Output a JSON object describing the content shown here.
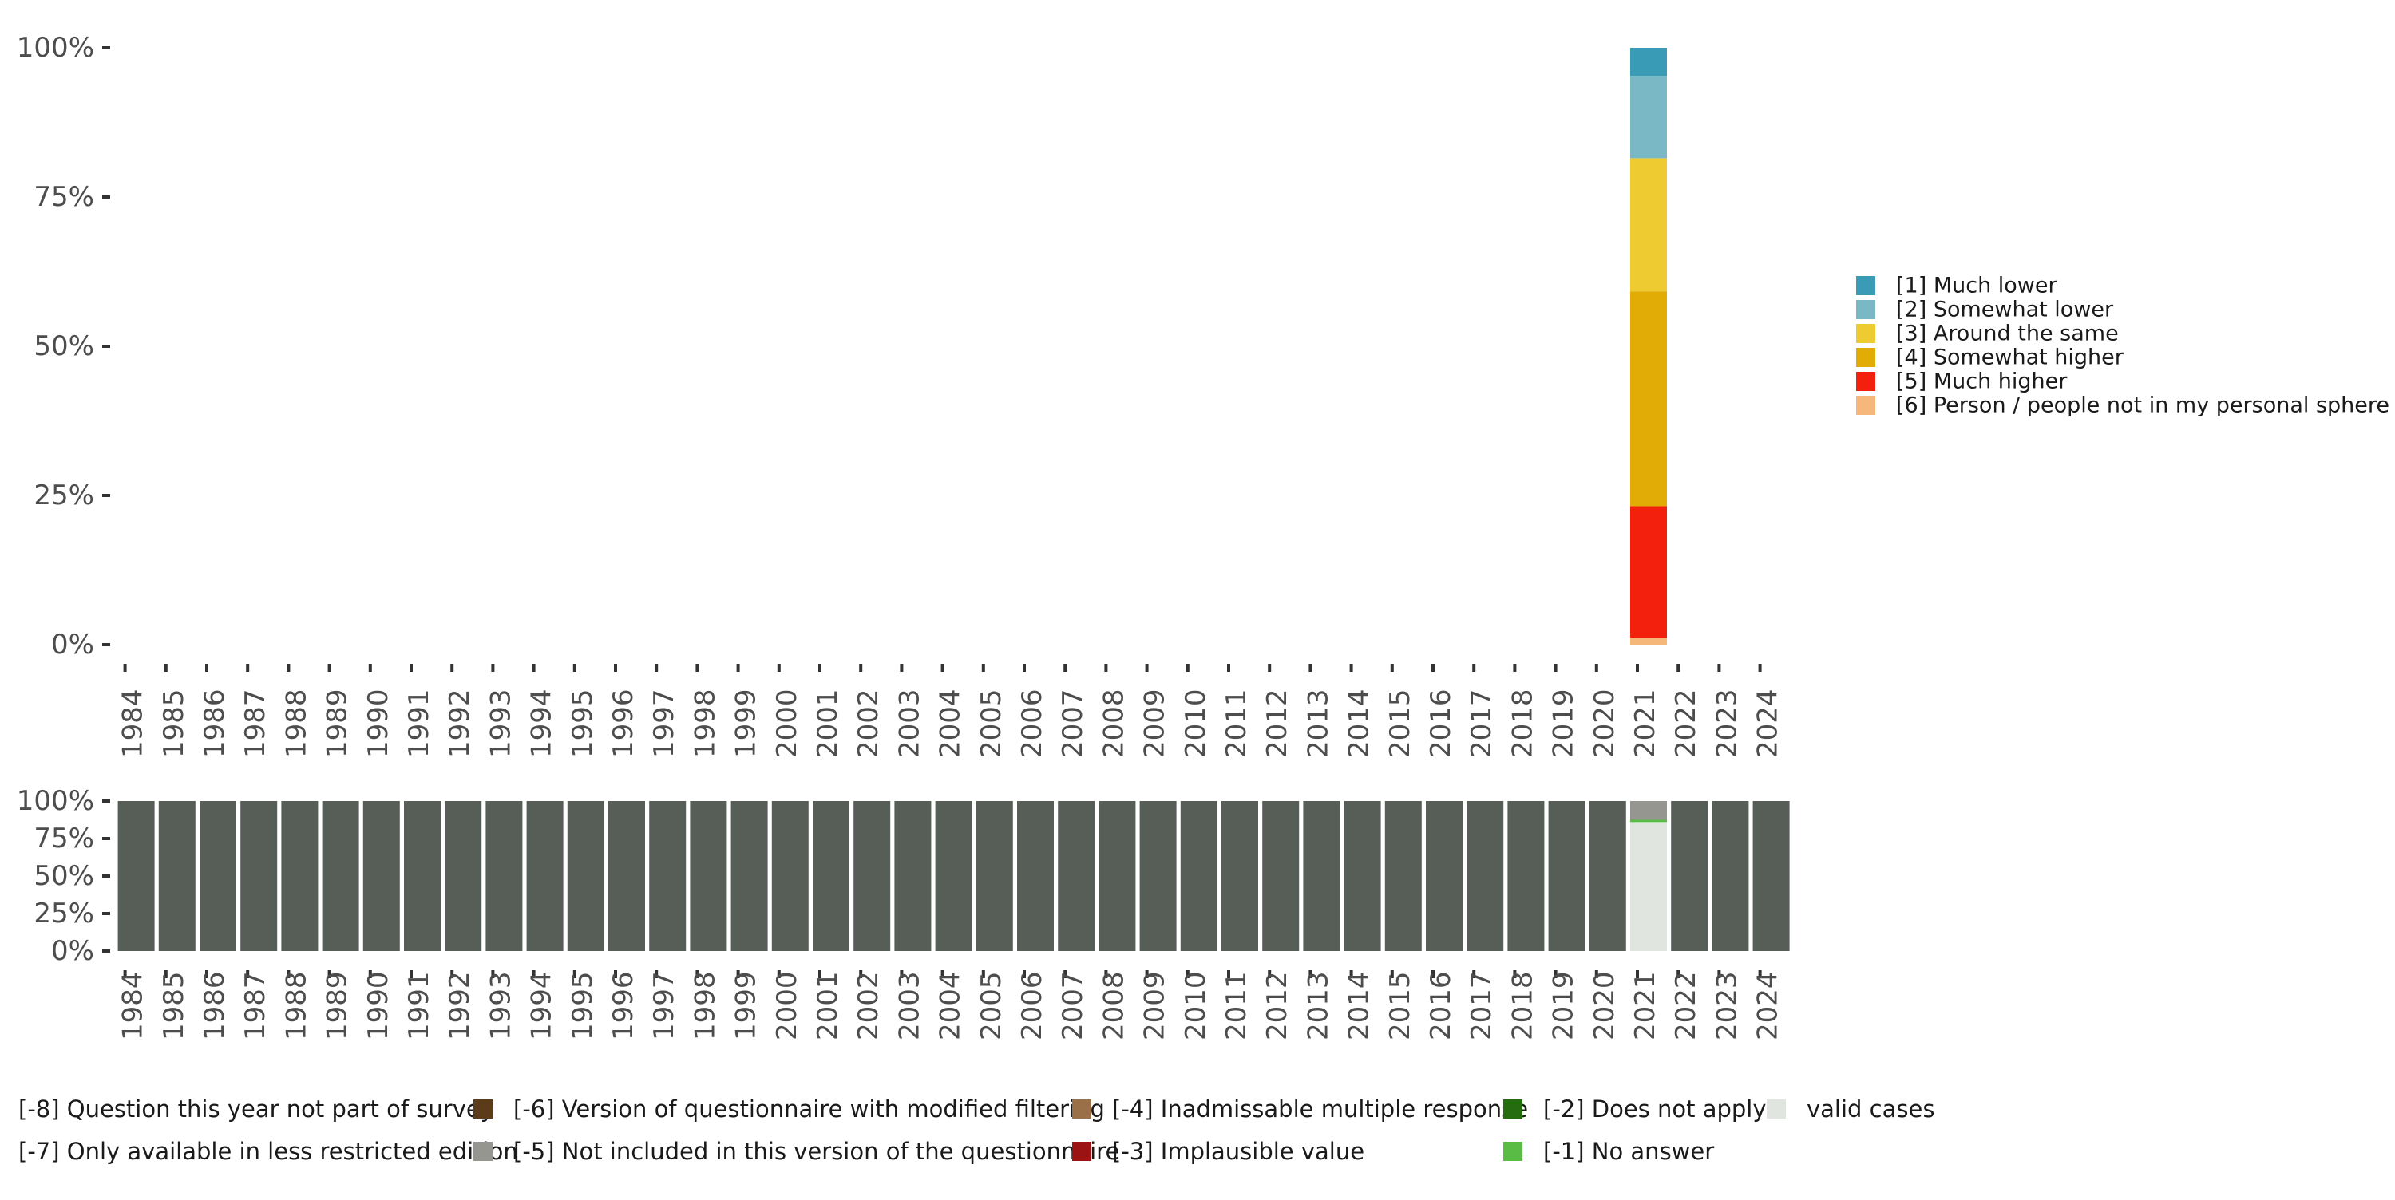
{
  "chart_data": [
    {
      "type": "bar",
      "stacked": true,
      "title": "",
      "xlabel": "",
      "ylabel": "",
      "ylim": [
        0,
        1
      ],
      "yticks": [
        "0%",
        "25%",
        "50%",
        "75%",
        "100%"
      ],
      "grid": false,
      "legend_position": "right",
      "categories": [
        "1984",
        "1985",
        "1986",
        "1987",
        "1988",
        "1989",
        "1990",
        "1991",
        "1992",
        "1993",
        "1994",
        "1995",
        "1996",
        "1997",
        "1998",
        "1999",
        "2000",
        "2001",
        "2002",
        "2003",
        "2004",
        "2005",
        "2006",
        "2007",
        "2008",
        "2009",
        "2010",
        "2011",
        "2012",
        "2013",
        "2014",
        "2015",
        "2016",
        "2017",
        "2018",
        "2019",
        "2020",
        "2021",
        "2022",
        "2023",
        "2024"
      ],
      "series": [
        {
          "name": "[6] Person / people not in my personal sphere",
          "color": "#f6b77b",
          "data": {
            "2021": 0.012
          }
        },
        {
          "name": "[5] Much higher",
          "color": "#f2200d",
          "data": {
            "2021": 0.22
          }
        },
        {
          "name": "[4] Somewhat higher",
          "color": "#e2ac06",
          "data": {
            "2021": 0.36
          }
        },
        {
          "name": "[3] Around the same",
          "color": "#eecb31",
          "data": {
            "2021": 0.223
          }
        },
        {
          "name": "[2] Somewhat lower",
          "color": "#7bb8c6",
          "data": {
            "2021": 0.138
          }
        },
        {
          "name": "[1] Much lower",
          "color": "#3a9bb6",
          "data": {
            "2021": 0.047
          }
        }
      ]
    },
    {
      "type": "bar",
      "stacked": true,
      "title": "",
      "xlabel": "",
      "ylabel": "",
      "ylim": [
        0,
        1
      ],
      "yticks": [
        "0%",
        "25%",
        "50%",
        "75%",
        "100%"
      ],
      "grid": false,
      "legend_position": "bottom",
      "categories": [
        "1984",
        "1985",
        "1986",
        "1987",
        "1988",
        "1989",
        "1990",
        "1991",
        "1992",
        "1993",
        "1994",
        "1995",
        "1996",
        "1997",
        "1998",
        "1999",
        "2000",
        "2001",
        "2002",
        "2003",
        "2004",
        "2005",
        "2006",
        "2007",
        "2008",
        "2009",
        "2010",
        "2011",
        "2012",
        "2013",
        "2014",
        "2015",
        "2016",
        "2017",
        "2018",
        "2019",
        "2020",
        "2021",
        "2022",
        "2023",
        "2024"
      ],
      "legend_order": [
        "[-8] Question this year not part of survey",
        "[-7] Only available in less restricted edition",
        "[-6] Version of questionnaire with modified filtering",
        "[-5] Not included in this version of the questionnaire",
        "[-4] Inadmissable multiple response",
        "[-3] Implausible value",
        "[-2] Does not apply",
        "[-1] No answer",
        "valid cases"
      ],
      "series": [
        {
          "name": "valid cases",
          "color": "#e1e5df",
          "data": {
            "2021": 0.86
          }
        },
        {
          "name": "[-1] No answer",
          "color": "#58bc45",
          "data": {
            "2021": 0.015
          }
        },
        {
          "name": "[-2] Does not apply",
          "color": "#256b10",
          "data": {}
        },
        {
          "name": "[-3] Implausible value",
          "color": "#9c1313",
          "data": {}
        },
        {
          "name": "[-4] Inadmissable multiple response",
          "color": "#9a7048",
          "data": {}
        },
        {
          "name": "[-5] Not included in this version of the questionnaire",
          "color": "#969690",
          "data": {
            "2021": 0.125
          }
        },
        {
          "name": "[-6] Version of questionnaire with modified filtering",
          "color": "#5c3b1a",
          "data": {}
        },
        {
          "name": "[-7] Only available in less restricted edition",
          "color": "#7a7a7a",
          "data": {}
        },
        {
          "name": "[-8] Question this year not part of survey",
          "color": "#575d57",
          "data": {
            "1984": 1,
            "1985": 1,
            "1986": 1,
            "1987": 1,
            "1988": 1,
            "1989": 1,
            "1990": 1,
            "1991": 1,
            "1992": 1,
            "1993": 1,
            "1994": 1,
            "1995": 1,
            "1996": 1,
            "1997": 1,
            "1998": 1,
            "1999": 1,
            "2000": 1,
            "2001": 1,
            "2002": 1,
            "2003": 1,
            "2004": 1,
            "2005": 1,
            "2006": 1,
            "2007": 1,
            "2008": 1,
            "2009": 1,
            "2010": 1,
            "2011": 1,
            "2012": 1,
            "2013": 1,
            "2014": 1,
            "2015": 1,
            "2016": 1,
            "2017": 1,
            "2018": 1,
            "2019": 1,
            "2020": 1,
            "2022": 1,
            "2023": 1,
            "2024": 1
          }
        }
      ]
    }
  ]
}
